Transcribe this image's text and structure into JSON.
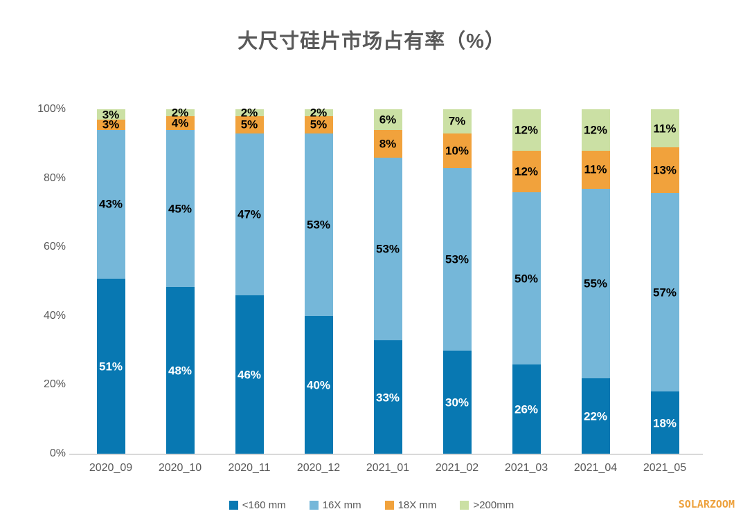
{
  "watermark": "SOLARZOOM",
  "chart_data": {
    "type": "bar",
    "stacked": true,
    "title": "大尺寸硅片市场占有率（%）",
    "xlabel": "",
    "ylabel": "",
    "ylim": [
      0,
      100
    ],
    "grid": false,
    "legend_position": "bottom",
    "y_ticks": [
      "0%",
      "20%",
      "40%",
      "60%",
      "80%",
      "100%"
    ],
    "categories": [
      "2020_09",
      "2020_10",
      "2020_11",
      "2020_12",
      "2021_01",
      "2021_02",
      "2021_03",
      "2021_04",
      "2021_05"
    ],
    "series": [
      {
        "name": "<160 mm",
        "color": "#0878b2",
        "label_color": "#ffffff",
        "values": [
          51,
          48,
          46,
          40,
          33,
          30,
          26,
          22,
          18
        ]
      },
      {
        "name": "16X mm",
        "color": "#75b7d9",
        "label_color": "#000000",
        "values": [
          43,
          45,
          47,
          53,
          53,
          53,
          50,
          55,
          57
        ]
      },
      {
        "name": "18X mm",
        "color": "#f1a23c",
        "label_color": "#000000",
        "values": [
          3,
          4,
          5,
          5,
          8,
          10,
          12,
          11,
          13
        ]
      },
      {
        "name": ">200mm",
        "color": "#cbe0a4",
        "label_color": "#000000",
        "values": [
          3,
          2,
          2,
          2,
          6,
          7,
          12,
          12,
          11
        ]
      }
    ],
    "colors": {
      "title_text": "#595959",
      "axis_text": "#595959",
      "axis_line": "#d9d9d9",
      "watermark_text": "#eda13d"
    }
  }
}
